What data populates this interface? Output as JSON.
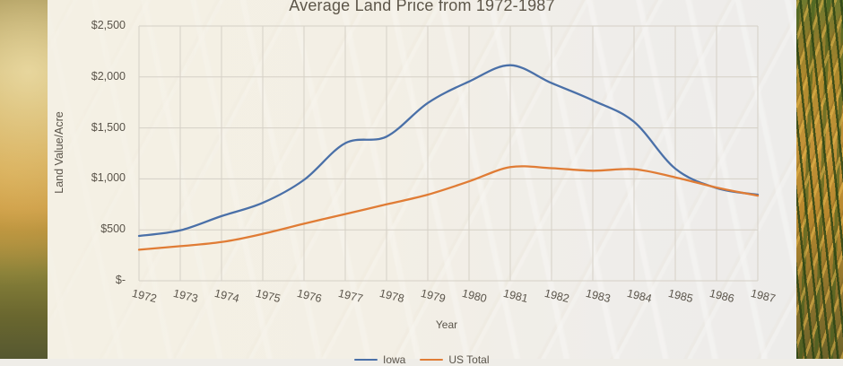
{
  "page": {
    "description": "Hero image: line chart on translucent panel over wheat-field photo"
  },
  "chart_data": {
    "type": "line",
    "title": "Average Land Price from 1972-1987",
    "xlabel": "Year",
    "ylabel": "Land Value/Acre",
    "x": [
      "1972",
      "1973",
      "1974",
      "1975",
      "1976",
      "1977",
      "1978",
      "1979",
      "1980",
      "1981",
      "1982",
      "1983",
      "1984",
      "1985",
      "1986",
      "1987"
    ],
    "series": [
      {
        "name": "Iowa",
        "color": "#4a70a8",
        "values": [
          440,
          495,
          635,
          765,
          990,
          1350,
          1415,
          1745,
          1955,
          2115,
          1940,
          1770,
          1560,
          1100,
          910,
          845
        ]
      },
      {
        "name": "US Total",
        "color": "#e07c35",
        "values": [
          305,
          340,
          380,
          460,
          560,
          655,
          750,
          845,
          975,
          1115,
          1105,
          1080,
          1095,
          1015,
          915,
          835
        ]
      }
    ],
    "ylim": [
      0,
      2500
    ],
    "ytick_values": [
      0,
      500,
      1000,
      1500,
      2000,
      2500
    ],
    "ytick_labels": [
      "$-",
      "$500",
      "$1,000",
      "$1,500",
      "$2,000",
      "$2,500"
    ],
    "grid": true,
    "gridline_color": "#d5d0c6",
    "legend_position": "bottom",
    "legend_labels": [
      "Iowa",
      "US Total"
    ]
  }
}
